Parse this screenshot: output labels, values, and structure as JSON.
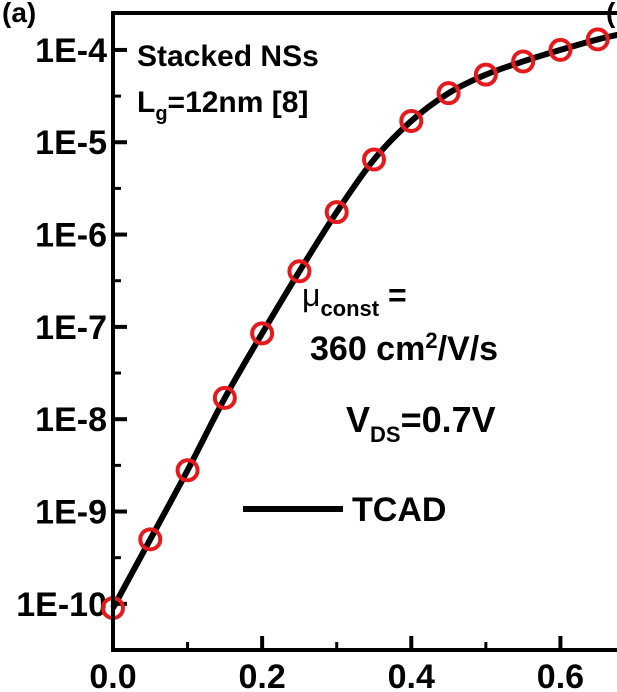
{
  "chart_data": {
    "type": "line",
    "panel_label": "(a)",
    "xlim": [
      0,
      0.7
    ],
    "ylim_log10": [
      -10.5,
      -3.6
    ],
    "log_scale_y": true,
    "x_ticks": [
      {
        "value": 0.0,
        "label": "0.0"
      },
      {
        "value": 0.2,
        "label": "0.2"
      },
      {
        "value": 0.4,
        "label": "0.4"
      },
      {
        "value": 0.6,
        "label": "0.6"
      }
    ],
    "y_ticks": [
      {
        "value": 0.0001,
        "label": "1E-4"
      },
      {
        "value": 1e-05,
        "label": "1E-5"
      },
      {
        "value": 1e-06,
        "label": "1E-6"
      },
      {
        "value": 1e-07,
        "label": "1E-7"
      },
      {
        "value": 1e-08,
        "label": "1E-8"
      },
      {
        "value": 1e-09,
        "label": "1E-9"
      },
      {
        "value": 1e-10,
        "label": "1E-10"
      }
    ],
    "series": [
      {
        "name": "TCAD",
        "kind": "line",
        "color": "#000000",
        "x": [
          0.0,
          0.05,
          0.1,
          0.15,
          0.2,
          0.25,
          0.3,
          0.35,
          0.4,
          0.45,
          0.5,
          0.55,
          0.6,
          0.65,
          0.7
        ],
        "y": [
          9e-11,
          5e-10,
          2.8e-09,
          1.7e-08,
          8.5e-08,
          4e-07,
          1.75e-06,
          6.5e-06,
          1.7e-05,
          3.4e-05,
          5.4e-05,
          7.5e-05,
          0.0001,
          0.00013,
          0.00016
        ]
      },
      {
        "name": "",
        "kind": "marker",
        "marker": "open-circle",
        "color": "#e41a1c",
        "x": [
          0.0,
          0.05,
          0.1,
          0.15,
          0.2,
          0.25,
          0.3,
          0.35,
          0.4,
          0.45,
          0.5,
          0.55,
          0.6,
          0.65
        ],
        "y": [
          9e-11,
          5e-10,
          2.8e-09,
          1.7e-08,
          8.5e-08,
          4e-07,
          1.75e-06,
          6.5e-06,
          1.7e-05,
          3.4e-05,
          5.4e-05,
          7.5e-05,
          0.0001,
          0.00013
        ]
      }
    ],
    "legend": {
      "placement": "lower-right",
      "entries": [
        "TCAD"
      ]
    },
    "annotations": {
      "device_line1": "Stacked NSs",
      "gate_length_prefix": "L",
      "gate_length_sub": "g",
      "gate_length_rest": "=12nm [8]",
      "mobility_symbol": "μ",
      "mobility_sub": "const",
      "mobility_eq": " =",
      "mobility_value": "360 cm",
      "mobility_sup": "2",
      "mobility_unit": "/V/s",
      "vds_prefix": "V",
      "vds_sub": "DS",
      "vds_rest": "=0.7V"
    }
  }
}
